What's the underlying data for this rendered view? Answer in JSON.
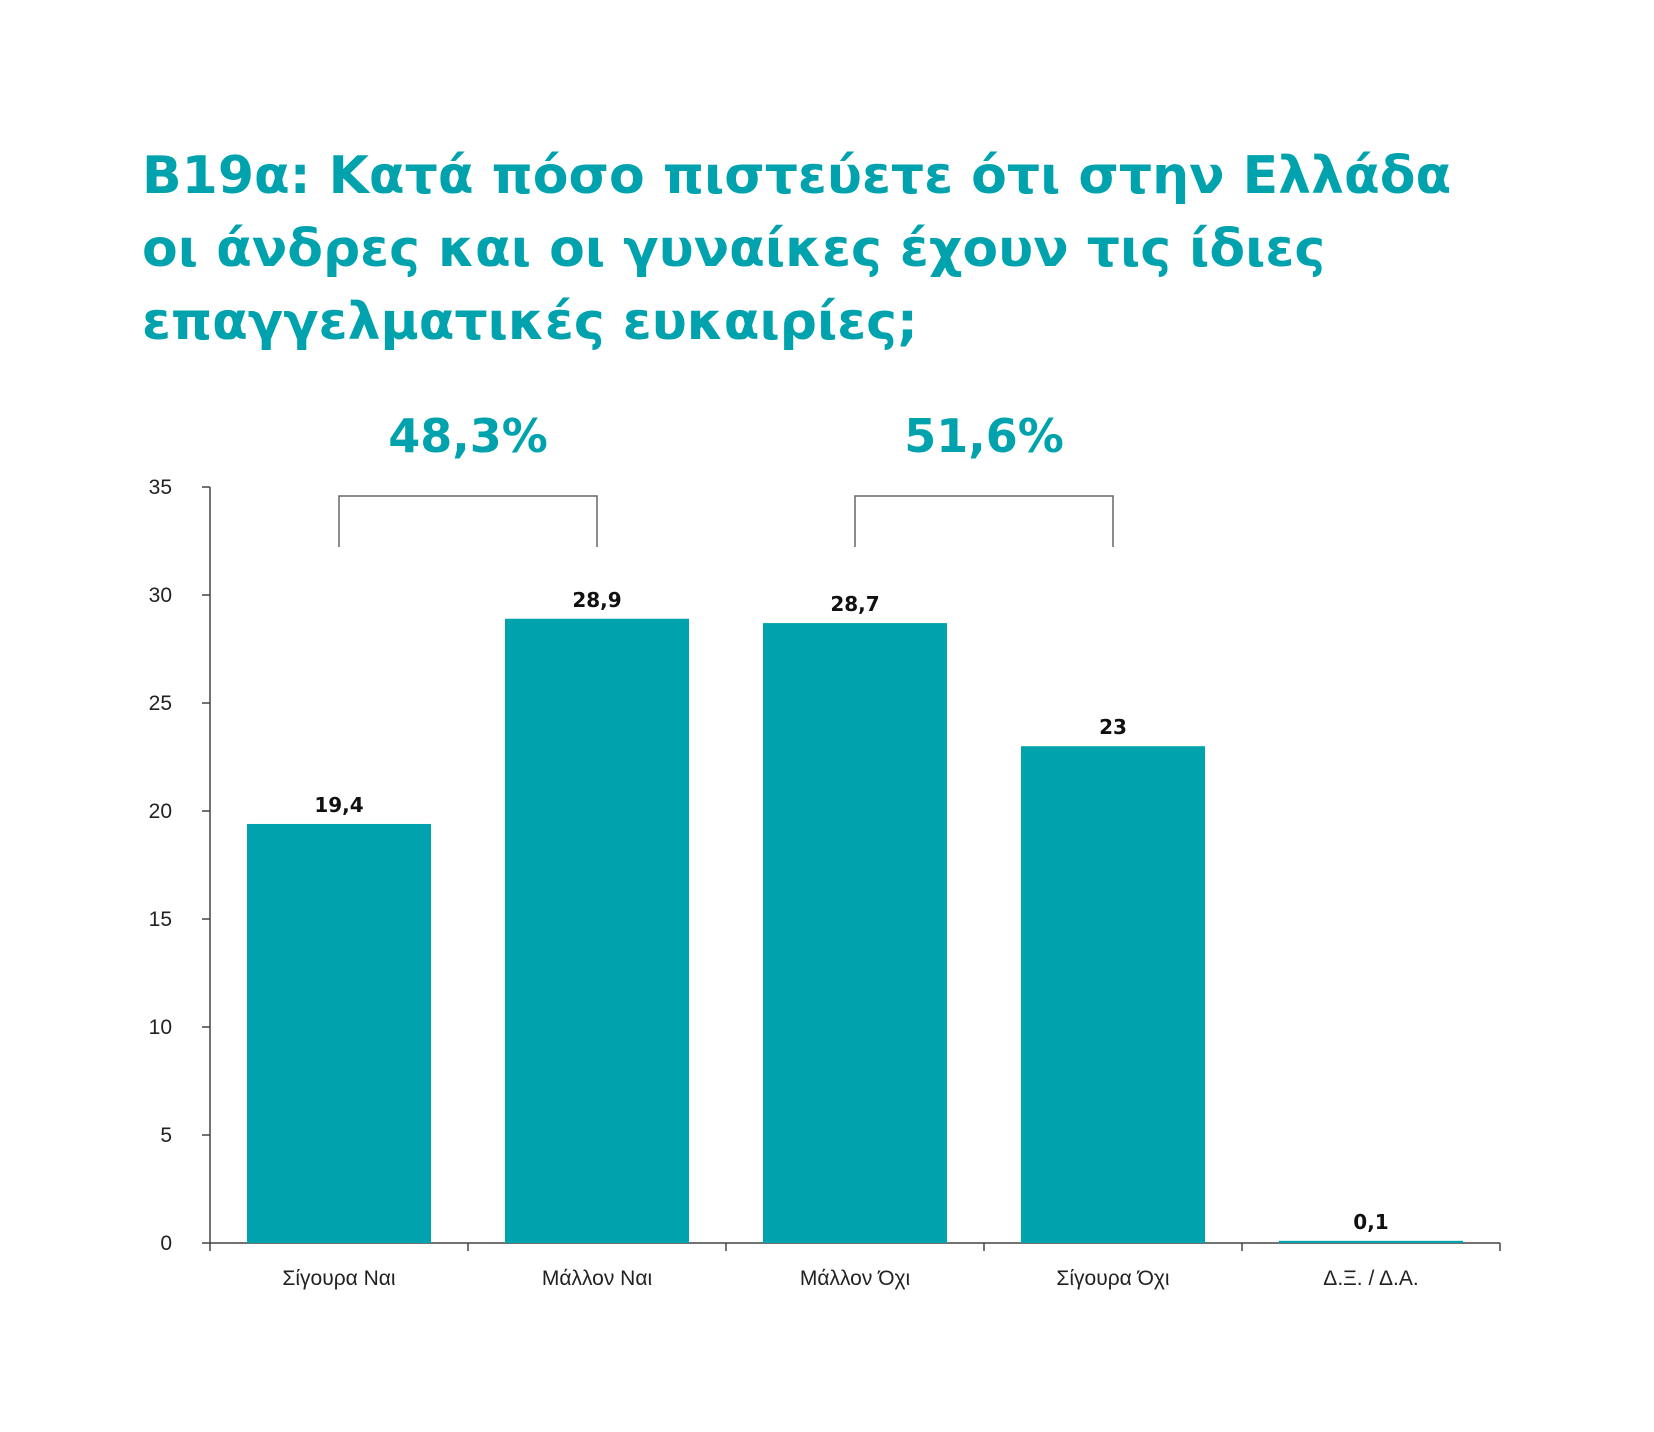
{
  "chart_data": {
    "type": "bar",
    "title_lines": [
      "Β19α: Κατά πόσο πιστεύετε ότι στην Ελλάδα",
      "οι άνδρες και οι γυναίκες έχουν τις ίδιες",
      "επαγγελματικές ευκαιρίες;"
    ],
    "categories": [
      "Σίγουρα Ναι",
      "Μάλλον Ναι",
      "Μάλλον Όχι",
      "Σίγουρα Όχι",
      "Δ.Ξ. / Δ.Α."
    ],
    "values": [
      19.4,
      28.9,
      28.7,
      23,
      0.1
    ],
    "value_labels": [
      "19,4",
      "28,9",
      "28,7",
      "23",
      "0,1"
    ],
    "ylim": [
      0,
      35
    ],
    "yticks": [
      0,
      5,
      10,
      15,
      20,
      25,
      30,
      35
    ],
    "xlabel": "",
    "ylabel": "",
    "grid": false,
    "legend": "none",
    "groups": [
      {
        "label": "48,3%",
        "from": 0,
        "to": 1
      },
      {
        "label": "51,6%",
        "from": 2,
        "to": 3
      }
    ],
    "colors": {
      "bar": "#00a3ad",
      "accent": "#00a3ad",
      "axis": "#444444",
      "bracket": "#666666"
    }
  }
}
